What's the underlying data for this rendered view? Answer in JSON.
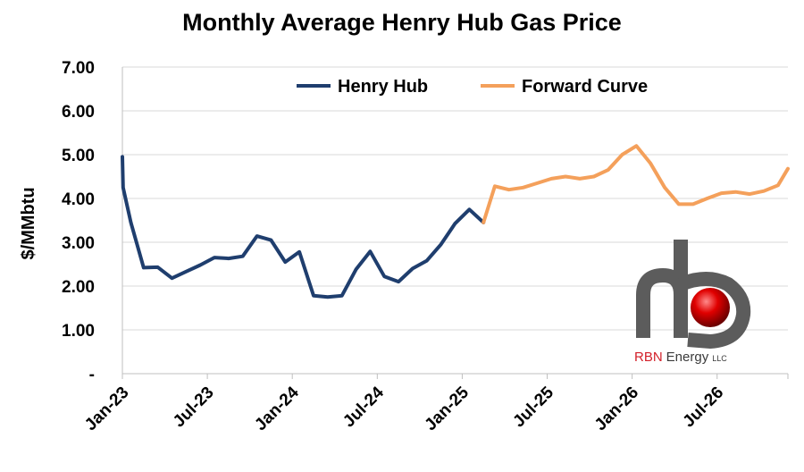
{
  "chart_data": {
    "type": "line",
    "title": "Monthly Average Henry Hub Gas Price",
    "ylabel": "$/MMbtu",
    "xlabel": "",
    "ylim": [
      0,
      7
    ],
    "yticks": [
      "-",
      "1.00",
      "2.00",
      "3.00",
      "4.00",
      "5.00",
      "6.00",
      "7.00"
    ],
    "ytick_values": [
      0,
      1,
      2,
      3,
      4,
      5,
      6,
      7
    ],
    "xticks": [
      "Jan-23",
      "Jul-23",
      "Jan-24",
      "Jul-24",
      "Jan-25",
      "Jul-25",
      "Jan-26",
      "Jul-26"
    ],
    "xtick_months": [
      0,
      6,
      12,
      18,
      24,
      30,
      36,
      42
    ],
    "x_months_total": 47,
    "grid": true,
    "legend_position": "top",
    "series": [
      {
        "name": "Henry Hub",
        "color": "#1f3e6e",
        "x": [
          0,
          0.05,
          0.6,
          1.5,
          2.5,
          3.5,
          4.5,
          5.5,
          6.5,
          7.5,
          8.5,
          9.5,
          10.5,
          11.5,
          12.5,
          13.5,
          14.5,
          15.5,
          16.5,
          17.5,
          18.5,
          19.5,
          20.5,
          21.5,
          22.5,
          23.5,
          24.5,
          25.5
        ],
        "values": [
          4.95,
          4.25,
          3.45,
          2.42,
          2.43,
          2.18,
          2.33,
          2.48,
          2.65,
          2.63,
          2.68,
          3.14,
          3.05,
          2.55,
          2.78,
          1.78,
          1.75,
          1.78,
          2.38,
          2.79,
          2.22,
          2.1,
          2.4,
          2.58,
          2.95,
          3.43,
          3.75,
          3.45
        ]
      },
      {
        "name": "Forward Curve",
        "color": "#f4a05b",
        "x": [
          25.5,
          26.3,
          27.3,
          28.3,
          29.3,
          30.3,
          31.3,
          32.3,
          33.3,
          34.3,
          35.3,
          36.3,
          37.3,
          38.3,
          39.3,
          40.3,
          41.3,
          42.3,
          43.3,
          44.3,
          45.3,
          46.3,
          47.0
        ],
        "values": [
          3.45,
          4.28,
          4.2,
          4.25,
          4.35,
          4.45,
          4.5,
          4.45,
          4.5,
          4.65,
          5.0,
          5.2,
          4.8,
          4.25,
          3.87,
          3.87,
          4.0,
          4.12,
          4.15,
          4.1,
          4.17,
          4.3,
          4.68
        ]
      }
    ]
  },
  "logo": {
    "brand": "RBN",
    "name": "Energy",
    "suffix": "LLC",
    "brand_color": "#d3202a",
    "pipe_color": "#6b6b6b",
    "ball_color": "#d40000"
  }
}
